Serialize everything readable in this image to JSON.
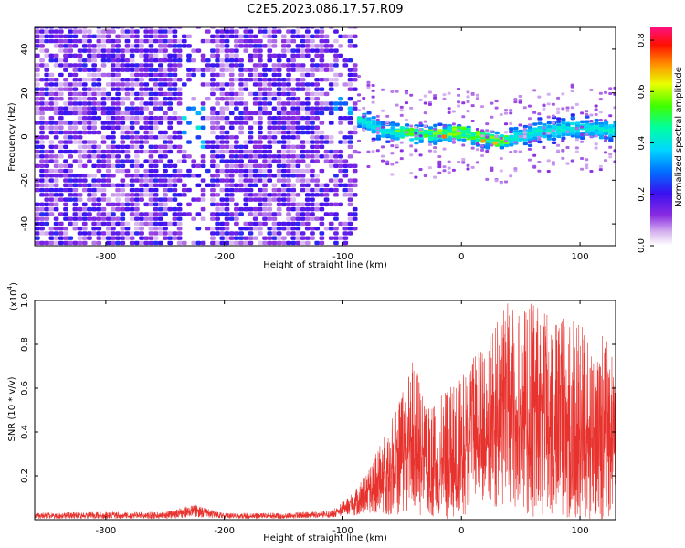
{
  "title": "C2E5.2023.086.17.57.R09",
  "chart_data": [
    {
      "type": "heatmap",
      "xlabel": "Height of straight line (km)",
      "ylabel": "Frequency (Hz)",
      "xlim": [
        -360,
        130
      ],
      "ylim": [
        -50,
        50
      ],
      "xticks": [
        -300,
        -200,
        -100,
        0,
        100
      ],
      "yticks": [
        -40,
        -20,
        0,
        20,
        40
      ],
      "grid": false,
      "noise_region_x": [
        -360,
        -100
      ],
      "signal_region_x": [
        -100,
        130
      ],
      "signal_center_frequency": [
        {
          "x": -240,
          "y": 7
        },
        {
          "x": -225,
          "y": 0
        },
        {
          "x": -105,
          "y": 14
        },
        {
          "x": -90,
          "y": 8
        },
        {
          "x": -70,
          "y": 2
        },
        {
          "x": -40,
          "y": 0
        },
        {
          "x": 0,
          "y": 1
        },
        {
          "x": 30,
          "y": -3
        },
        {
          "x": 60,
          "y": 1
        },
        {
          "x": 90,
          "y": 3
        },
        {
          "x": 130,
          "y": 2
        }
      ],
      "peak_amplitude_points": [
        {
          "x": -15,
          "y": 0,
          "amplitude": 0.85
        },
        {
          "x": 18,
          "y": -2,
          "amplitude": 0.82
        },
        {
          "x": 28,
          "y": -3,
          "amplitude": 0.8
        }
      ],
      "colorbar": {
        "label": "Normalized spectral amplitude",
        "range": [
          0.0,
          0.85
        ],
        "ticks": [
          "0.0",
          "0.2",
          "0.4",
          "0.6",
          "0.8"
        ],
        "colormap": "rainbow (white-purple-blue-cyan-green-yellow-red-magenta)"
      }
    },
    {
      "type": "line",
      "xlabel": "Height of straight line (km)",
      "ylabel": "SNR (10 * v/v)",
      "y_multiplier_label": "(x10",
      "y_multiplier_exp": "4",
      "xlim": [
        -360,
        130
      ],
      "ylim": [
        0,
        1.0
      ],
      "xticks": [
        -300,
        -200,
        -100,
        0,
        100
      ],
      "yticks": [
        "0.2",
        "0.4",
        "0.6",
        "0.8",
        "1.0"
      ],
      "series": [
        {
          "color": "#e8322e",
          "x": [
            -360,
            -300,
            -250,
            -225,
            -215,
            -200,
            -150,
            -110,
            -100,
            -90,
            -80,
            -70,
            -60,
            -50,
            -40,
            -30,
            -20,
            -10,
            0,
            10,
            20,
            30,
            40,
            50,
            60,
            70,
            80,
            90,
            100,
            110,
            120,
            130
          ],
          "envelope_max": [
            0.03,
            0.035,
            0.035,
            0.07,
            0.05,
            0.03,
            0.03,
            0.04,
            0.08,
            0.13,
            0.22,
            0.33,
            0.45,
            0.6,
            0.74,
            0.5,
            0.55,
            0.6,
            0.65,
            0.75,
            0.8,
            0.9,
            1.0,
            0.95,
            1.0,
            0.95,
            0.9,
            0.95,
            0.9,
            0.8,
            0.85,
            0.75
          ],
          "envelope_min": [
            0.005,
            0.005,
            0.005,
            0.01,
            0.01,
            0.005,
            0.005,
            0.01,
            0.02,
            0.02,
            0.03,
            0.03,
            0.02,
            0.02,
            0.01,
            0.01,
            0.01,
            0.0,
            0.0,
            0.05,
            0.1,
            0.05,
            0.05,
            0.05,
            0.0,
            0.0,
            0.0,
            0.0,
            0.0,
            0.0,
            0.0,
            0.0
          ]
        }
      ]
    }
  ]
}
